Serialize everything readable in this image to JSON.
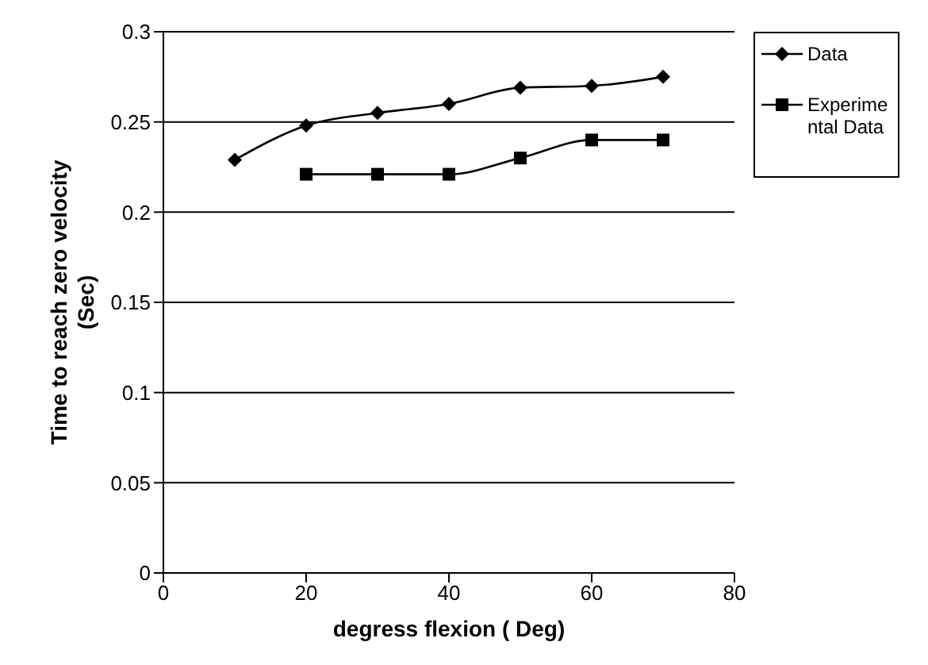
{
  "chart_data": {
    "type": "line",
    "xlabel": "degress flexion ( Deg)",
    "ylabel": "Time to reach zero velocity (Sec)",
    "xlim": [
      0,
      80
    ],
    "xticks": [
      0,
      20,
      40,
      60,
      80
    ],
    "ylim": [
      0,
      0.3
    ],
    "yticks": [
      0,
      0.05,
      0.1,
      0.15,
      0.2,
      0.25,
      0.3
    ],
    "grid": "y",
    "legend": "right",
    "line_style": "solid",
    "series": [
      {
        "name": "Data",
        "color": "#000000",
        "marker": "diamond",
        "x": [
          10,
          20,
          30,
          40,
          50,
          60,
          70
        ],
        "values": [
          0.229,
          0.248,
          0.255,
          0.26,
          0.269,
          0.27,
          0.275
        ]
      },
      {
        "name": "Experimental Data",
        "color": "#000000",
        "marker": "square",
        "x": [
          20,
          30,
          40,
          50,
          60,
          70
        ],
        "values": [
          0.221,
          0.221,
          0.221,
          0.23,
          0.24,
          0.24
        ]
      }
    ]
  }
}
